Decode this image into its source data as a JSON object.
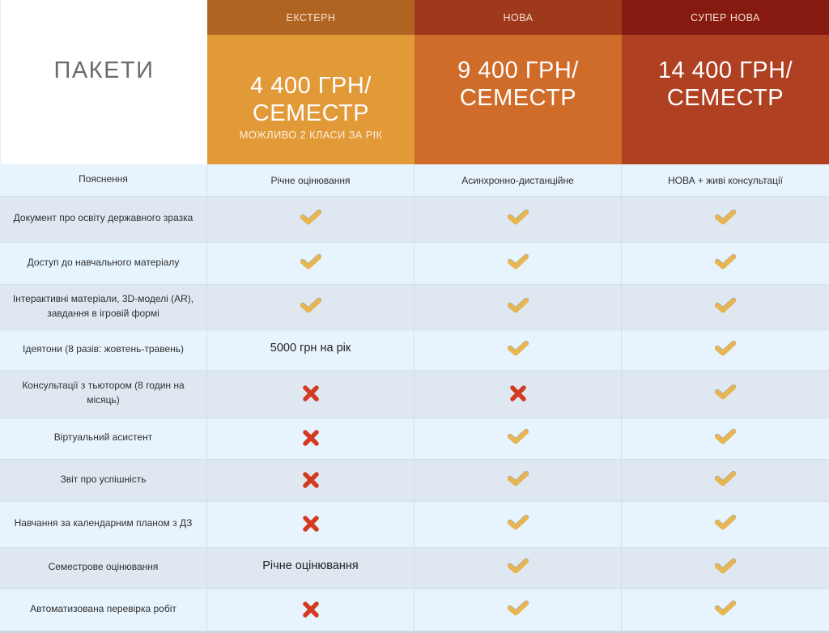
{
  "title": "ПАКЕТИ",
  "packages": [
    {
      "name": "ЕКСТЕРН",
      "price_line1": "4 400 ГРН/",
      "price_line2": "СЕМЕСТР",
      "note": "МОЖЛИВО 2 КЛАСИ ЗА РІК"
    },
    {
      "name": "НОВА",
      "price_line1": "9 400 ГРН/",
      "price_line2": "СЕМЕСТР",
      "note": ""
    },
    {
      "name": "СУПЕР НОВА",
      "price_line1": "14 400 ГРН/",
      "price_line2": "СЕМЕСТР",
      "note": ""
    }
  ],
  "colors": {
    "check": "#e8b54f",
    "cross": "#d33a22"
  },
  "rows": [
    {
      "label": "Пояснення",
      "values": [
        {
          "type": "text",
          "text": "Річне оцінювання",
          "small": true
        },
        {
          "type": "text",
          "text": "Асинхронно-дистанційне",
          "small": true
        },
        {
          "type": "text",
          "text": "НОВА + живі консультації",
          "small": true
        }
      ]
    },
    {
      "label": "Документ про освіту державного зразка",
      "values": [
        {
          "type": "check"
        },
        {
          "type": "check"
        },
        {
          "type": "check"
        }
      ]
    },
    {
      "label": "Доступ до навчального матеріалу",
      "values": [
        {
          "type": "check"
        },
        {
          "type": "check"
        },
        {
          "type": "check"
        }
      ]
    },
    {
      "label": "Інтерактивні матеріали, 3D-моделі (AR), завдання в ігровій формі",
      "values": [
        {
          "type": "check"
        },
        {
          "type": "check"
        },
        {
          "type": "check"
        }
      ]
    },
    {
      "label": "Ідеятони (8 разів: жовтень-травень)",
      "values": [
        {
          "type": "text",
          "text": "5000 грн на рік"
        },
        {
          "type": "check"
        },
        {
          "type": "check"
        }
      ]
    },
    {
      "label": "Консультації з тьютором (8 годин на місяць)",
      "values": [
        {
          "type": "cross"
        },
        {
          "type": "cross"
        },
        {
          "type": "check"
        }
      ]
    },
    {
      "label": "Віртуальний асистент",
      "values": [
        {
          "type": "cross"
        },
        {
          "type": "check"
        },
        {
          "type": "check"
        }
      ]
    },
    {
      "label": "Звіт про успішність",
      "values": [
        {
          "type": "cross"
        },
        {
          "type": "check"
        },
        {
          "type": "check"
        }
      ]
    },
    {
      "label": "Навчання за календарним планом з ДЗ",
      "values": [
        {
          "type": "cross"
        },
        {
          "type": "check"
        },
        {
          "type": "check"
        }
      ]
    },
    {
      "label": "Семестрове оцінювання",
      "values": [
        {
          "type": "text",
          "text": "Річне оцінювання"
        },
        {
          "type": "check"
        },
        {
          "type": "check"
        }
      ]
    },
    {
      "label": "Автоматизована перевірка робіт",
      "values": [
        {
          "type": "cross"
        },
        {
          "type": "check"
        },
        {
          "type": "check"
        }
      ]
    }
  ]
}
